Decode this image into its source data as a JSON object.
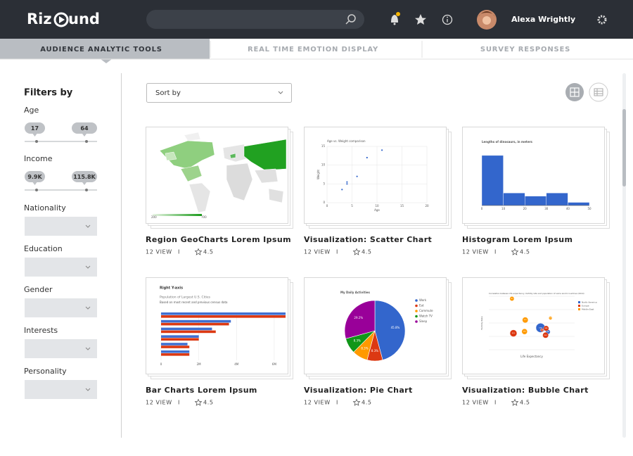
{
  "header": {
    "logo_left": "Riz",
    "logo_right": "und",
    "user_name": "Alexa Wrightly"
  },
  "tabs": [
    "AUDIENCE ANALYTIC TOOLS",
    "REAL TIME EMOTION DISPLAY",
    "SURVEY RESPONSES"
  ],
  "filters": {
    "title": "Filters by",
    "ranges": [
      {
        "label": "Age",
        "min": "17",
        "max": "64"
      },
      {
        "label": "Income",
        "min": "9.9K",
        "max": "115.8K"
      }
    ],
    "dropdowns": [
      "Nationality",
      "Education",
      "Gender",
      "Interests",
      "Personality"
    ]
  },
  "sort_label": "Sort by",
  "cards": [
    {
      "title": "Region GeoCharts Lorem Ipsum",
      "views": "12 VIEW",
      "separator": "I",
      "rating": "4.5",
      "chart": {
        "type": "geo",
        "legend_min": "200",
        "legend_max": "700"
      }
    },
    {
      "title": "Visualization: Scatter Chart",
      "views": "12 VIEW",
      "separator": "I",
      "rating": "4.5",
      "chart": {
        "type": "scatter",
        "title": "Age vs. Weight comparison",
        "x_label": "Age",
        "y_label": "Weight",
        "x": [
          3,
          4,
          4,
          6,
          8,
          11
        ],
        "values": [
          3.5,
          5,
          5.5,
          7,
          12,
          14
        ],
        "color": "#3366cc",
        "xlim": [
          0,
          20
        ],
        "ylim": [
          0,
          15
        ],
        "xticks": [
          0,
          5,
          10,
          15,
          20
        ],
        "yticks": [
          0,
          5,
          10,
          15
        ]
      }
    },
    {
      "title": "Histogram Lorem Ipsum",
      "views": "12 VIEW",
      "separator": "I",
      "rating": "4.5",
      "chart": {
        "type": "histogram",
        "title": "Lengths of dinosaurs, in meters",
        "bins": [
          0,
          10,
          20,
          30,
          40,
          50
        ],
        "values": [
          16,
          4,
          3,
          4,
          1
        ],
        "color": "#3366cc",
        "xlim": [
          0,
          50
        ],
        "ylim": [
          0,
          18
        ],
        "xticks": [
          0,
          10,
          20,
          30,
          40,
          50
        ]
      }
    },
    {
      "title": "Bar Charts Lorem Ipsum",
      "views": "12 VIEW",
      "separator": "I",
      "rating": "4.5",
      "chart": {
        "type": "bar",
        "title": "Right Y-axis",
        "subtitle": "Population of Largest U.S. Cities",
        "note": "Based on most recent and previous census data",
        "series": [
          {
            "color": "#3f6fd1",
            "values": [
              6.6,
              3.7,
              2.7,
              2.0,
              1.4,
              1.5
            ]
          },
          {
            "color": "#dc3912",
            "values": [
              6.6,
              3.6,
              2.9,
              2.0,
              1.5,
              1.5
            ]
          }
        ],
        "xlim": [
          0,
          6.6
        ],
        "xticks": [
          0,
          {
            "value": 2,
            "label": "2M"
          },
          {
            "value": 4,
            "label": "4M"
          },
          {
            "value": 6,
            "label": "6M"
          }
        ]
      }
    },
    {
      "title": "Visualization: Pie Chart",
      "views": "12 VIEW",
      "separator": "I",
      "rating": "4.5",
      "chart": {
        "type": "pie",
        "title": "My Daily Activities",
        "categories": [
          "Work",
          "Eat",
          "Commute",
          "Watch TV",
          "Sleep"
        ],
        "values": [
          45.8,
          8.3,
          8.3,
          8.3,
          29.2
        ],
        "value_labels": [
          "45.8%",
          "8.3%",
          "8.3%",
          "8.3%",
          "29.2%"
        ],
        "colors": [
          "#3366cc",
          "#dc3912",
          "#ff9900",
          "#109618",
          "#990099"
        ]
      }
    },
    {
      "title": "Visualization: Bubble Chart",
      "views": "12 VIEW",
      "separator": "I",
      "rating": "4.5",
      "chart": {
        "type": "bubble",
        "title": "Correlation between life expectancy, fertility rate and population of some world countries (2010)",
        "x_label": "Life Expectancy",
        "y_label": "Fertility Rate",
        "xlim": [
          60,
          90
        ],
        "ylim": [
          0,
          5
        ],
        "series": [
          {
            "name": "North America",
            "color": "#3366cc",
            "labels": [
              "CAN",
              "USA"
            ],
            "x": [
              80.66,
              78.09
            ],
            "values": [
              1.67,
              2.05
            ],
            "sizes": [
              33.7,
              307
            ]
          },
          {
            "name": "Europe",
            "color": "#dc3912",
            "labels": [
              "DEU",
              "DNK",
              "GBR",
              "RUS"
            ],
            "x": [
              79.84,
              78.6,
              80.05,
              68.6
            ],
            "values": [
              1.36,
              1.84,
              2,
              1.54
            ],
            "sizes": [
              81.8,
              5.5,
              61.8,
              141.9
            ]
          },
          {
            "name": "Middle East",
            "color": "#ff9900",
            "labels": [
              "EGY",
              "IRN",
              "IRQ",
              "ISR"
            ],
            "x": [
              72.73,
              72.49,
              68.09,
              81.55
            ],
            "values": [
              2.78,
              1.7,
              4.77,
              2.96
            ],
            "sizes": [
              79.7,
              73.1,
              31.1,
              7.5
            ]
          }
        ]
      }
    }
  ]
}
